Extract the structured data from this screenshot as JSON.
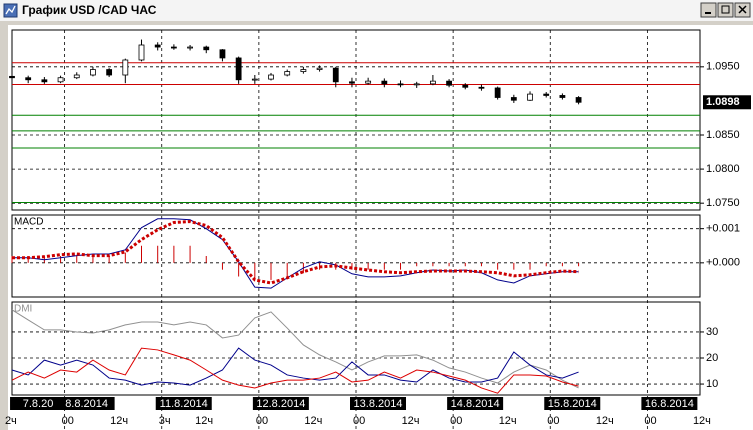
{
  "window": {
    "title": "График USD /CAD  ЧАС"
  },
  "chart_data": [
    {
      "type": "candlestick",
      "x": [
        0,
        4,
        8,
        12,
        16,
        20,
        24,
        28,
        32,
        36,
        40,
        44,
        48,
        52,
        56,
        60,
        64,
        68,
        72,
        76,
        80,
        84,
        88,
        92,
        96,
        100,
        104,
        108,
        112,
        116,
        120,
        124,
        128,
        132,
        136,
        140
      ],
      "open": [
        1.0936,
        1.0934,
        1.0931,
        1.0928,
        1.0934,
        1.0938,
        1.0946,
        1.0938,
        1.096,
        1.0982,
        1.0979,
        1.0978,
        1.0979,
        1.0975,
        1.0963,
        1.0931,
        1.0932,
        1.0938,
        1.0943,
        1.0946,
        1.0948,
        1.0928,
        1.0926,
        1.0929,
        1.0925,
        1.0924,
        1.0925,
        1.0929,
        1.0923,
        1.092,
        1.0919,
        1.0905,
        1.0901,
        1.091,
        1.0908,
        1.0905
      ],
      "high": [
        1.094,
        1.0937,
        1.0935,
        1.0937,
        1.0942,
        1.095,
        1.0948,
        1.0962,
        1.099,
        1.0986,
        1.0983,
        1.0982,
        1.0981,
        1.0976,
        1.0965,
        1.0938,
        1.0941,
        1.0946,
        1.095,
        1.0952,
        1.095,
        1.0934,
        1.0934,
        1.0933,
        1.093,
        1.0928,
        1.0938,
        1.0932,
        1.0926,
        1.0924,
        1.0921,
        1.0909,
        1.0914,
        1.0913,
        1.0911,
        1.0907
      ],
      "low": [
        1.093,
        1.0926,
        1.0925,
        1.0926,
        1.0932,
        1.0936,
        1.0935,
        1.0926,
        1.0958,
        1.0974,
        1.0975,
        1.0974,
        1.097,
        1.0958,
        1.0925,
        1.0925,
        1.093,
        1.0936,
        1.094,
        1.0943,
        1.092,
        1.092,
        1.0924,
        1.092,
        1.092,
        1.0919,
        1.0923,
        1.092,
        1.0917,
        1.0915,
        1.0902,
        1.0897,
        1.09,
        1.0905,
        1.0902,
        1.0895
      ],
      "close": [
        1.0934,
        1.0931,
        1.0928,
        1.0934,
        1.0938,
        1.0946,
        1.0938,
        1.096,
        1.0982,
        1.0979,
        1.0978,
        1.0979,
        1.0975,
        1.0963,
        1.0931,
        1.0932,
        1.0938,
        1.0943,
        1.0946,
        1.0948,
        1.0928,
        1.0926,
        1.0929,
        1.0925,
        1.0924,
        1.0925,
        1.0929,
        1.0923,
        1.092,
        1.0919,
        1.0905,
        1.0901,
        1.091,
        1.0908,
        1.0905,
        1.0898
      ],
      "up_color": "#ffffff",
      "down_color": "#000000",
      "xlim": [
        0,
        170
      ],
      "ylim": [
        1.074,
        1.1004
      ],
      "yticks": [
        {
          "value": 1.075,
          "label": "1.0750"
        },
        {
          "value": 1.08,
          "label": "1.0800"
        },
        {
          "value": 1.085,
          "label": "1.0850"
        },
        {
          "value": 1.095,
          "label": "1.0950"
        }
      ],
      "last_price": {
        "value": 1.0898,
        "label": "1.0898"
      },
      "levels": [
        {
          "value": 1.0956,
          "color": "#cc0000"
        },
        {
          "value": 1.0924,
          "color": "#cc0000"
        },
        {
          "value": 1.0879,
          "color": "#008000"
        },
        {
          "value": 1.0856,
          "color": "#008000"
        },
        {
          "value": 1.0831,
          "color": "#008000"
        },
        {
          "value": 1.0751,
          "color": "#008000"
        }
      ],
      "xgrid": [
        13,
        37,
        61,
        85,
        109,
        133,
        157
      ],
      "date_ticks": [
        {
          "value": 1,
          "label": "7.8.20"
        },
        {
          "value": 13,
          "label": "8.8.2014"
        },
        {
          "value": 37,
          "label": "11.8.2014"
        },
        {
          "value": 61,
          "label": "12.8.2014"
        },
        {
          "value": 85,
          "label": "13.8.2014"
        },
        {
          "value": 109,
          "label": "14.8.2014"
        },
        {
          "value": 133,
          "label": "15.8.2014"
        },
        {
          "value": 157,
          "label": "16.8.2014"
        }
      ],
      "hour_ticks": [
        {
          "value": -1,
          "label": "2ч"
        },
        {
          "value": 13,
          "label": "00"
        },
        {
          "value": 25,
          "label": "12ч"
        },
        {
          "value": 37,
          "label": "3ч"
        },
        {
          "value": 46,
          "label": "12ч"
        },
        {
          "value": 61,
          "label": "00"
        },
        {
          "value": 73,
          "label": "12ч"
        },
        {
          "value": 85,
          "label": "00"
        },
        {
          "value": 97,
          "label": "12ч"
        },
        {
          "value": 109,
          "label": "00"
        },
        {
          "value": 121,
          "label": "12ч"
        },
        {
          "value": 133,
          "label": "00"
        },
        {
          "value": 145,
          "label": "12ч"
        },
        {
          "value": 157,
          "label": "00"
        },
        {
          "value": 169,
          "label": "12ч"
        }
      ]
    },
    {
      "type": "macd",
      "title": "MACD",
      "x": [
        0,
        4,
        8,
        12,
        16,
        20,
        24,
        28,
        32,
        36,
        40,
        44,
        48,
        52,
        56,
        60,
        64,
        68,
        72,
        76,
        80,
        84,
        88,
        92,
        96,
        100,
        104,
        108,
        112,
        116,
        120,
        124,
        128,
        132,
        136,
        140
      ],
      "xlim": [
        0,
        170
      ],
      "ylim": [
        -0.001,
        0.0014
      ],
      "yticks": [
        {
          "value": 0.001,
          "label": "+0.001"
        },
        {
          "value": 0,
          "label": "+0.000"
        }
      ],
      "histogram": {
        "color": "#cc0000",
        "values": [
          0.0002,
          0.0002,
          0.0002,
          0.0002,
          0.0002,
          0.0002,
          0.0002,
          0.0003,
          0.0005,
          0.0005,
          0.0005,
          0.0005,
          0.0002,
          -0.0002,
          -0.0004,
          -0.0005,
          -0.0005,
          -0.0004,
          -0.0003,
          -0.0002,
          -0.0002,
          -0.0002,
          -0.0002,
          -0.0002,
          -0.0002,
          -0.0001,
          -0.0001,
          -0.0001,
          -0.0001,
          -0.0001,
          -0.0002,
          -0.0002,
          -0.0002,
          -0.0001,
          -0.0001,
          -0.0001
        ]
      },
      "series": [
        {
          "color": "#00008b",
          "style": "solid",
          "values": [
            0.00015,
            0.00015,
            9e-05,
            0.00015,
            0.00021,
            0.00026,
            0.00026,
            0.00038,
            0.00103,
            0.00129,
            0.00129,
            0.00126,
            0.001,
            0.00068,
            3e-05,
            -0.00071,
            -0.00074,
            -0.00044,
            -0.00015,
            3e-05,
            -6e-05,
            -0.00032,
            -0.00041,
            -0.00041,
            -0.00038,
            -0.00029,
            -0.00021,
            -0.00024,
            -0.00021,
            -0.00029,
            -0.0005,
            -0.00059,
            -0.00038,
            -0.00032,
            -0.00026,
            -0.00026
          ]
        },
        {
          "color": "#cc0000",
          "style": "dotted",
          "values": [
            0.00015,
            0.00015,
            0.00018,
            0.00024,
            0.00026,
            0.00021,
            0.00021,
            0.00032,
            0.00068,
            0.00097,
            0.00118,
            0.00121,
            0.00109,
            0.00074,
            3e-05,
            -0.0005,
            -0.00059,
            -0.00044,
            -0.00026,
            -0.00012,
            -9e-05,
            -0.00015,
            -0.00021,
            -0.00026,
            -0.00029,
            -0.00026,
            -0.00024,
            -0.00024,
            -0.00024,
            -0.00026,
            -0.00029,
            -0.00038,
            -0.00035,
            -0.00029,
            -0.00024,
            -0.00026
          ]
        }
      ]
    },
    {
      "type": "dmi",
      "title": "DMI",
      "x": [
        0,
        4,
        8,
        12,
        16,
        20,
        24,
        28,
        32,
        36,
        40,
        44,
        48,
        52,
        56,
        60,
        64,
        68,
        72,
        76,
        80,
        84,
        88,
        92,
        96,
        100,
        104,
        108,
        112,
        116,
        120,
        124,
        128,
        132,
        136,
        140
      ],
      "xlim": [
        0,
        170
      ],
      "ylim": [
        5.8,
        41.5
      ],
      "yticks": [
        10,
        20,
        30
      ],
      "series": [
        {
          "color": "#909090",
          "style": "solid",
          "values": [
            38.5,
            34.6,
            30.8,
            30.8,
            30,
            29.6,
            30.8,
            32.7,
            33.8,
            33.8,
            32.7,
            33.8,
            32.7,
            27.7,
            28.8,
            35.4,
            37.7,
            31.5,
            25,
            21.2,
            18.5,
            15.4,
            18.5,
            20.8,
            20.8,
            21.2,
            19.2,
            16.2,
            14.6,
            12.3,
            10.4,
            14.6,
            17.3,
            15.4,
            11.5,
            8.5
          ]
        },
        {
          "color": "#00008b",
          "style": "solid",
          "values": [
            15.4,
            13.5,
            19.2,
            17.3,
            19.2,
            17.3,
            12.3,
            11.5,
            9.6,
            10.8,
            10.4,
            9.6,
            12.3,
            15.4,
            23.8,
            19.2,
            17.3,
            13.5,
            12.3,
            11.5,
            12.3,
            18.5,
            13.5,
            13.5,
            11.5,
            10.8,
            15.4,
            12.3,
            10.8,
            10.8,
            12.3,
            22.3,
            17.3,
            13.5,
            12.3,
            14.6
          ]
        },
        {
          "color": "#dd0000",
          "style": "solid",
          "values": [
            11.5,
            14.6,
            12.3,
            15.4,
            14.6,
            19.2,
            15.4,
            13.5,
            23.8,
            23.1,
            21.2,
            19.2,
            15.4,
            11.5,
            9.6,
            8.5,
            10.4,
            11.5,
            11.5,
            12.3,
            14.6,
            10.8,
            11.5,
            14.6,
            12.3,
            15.4,
            14.6,
            13.1,
            11.5,
            8.5,
            6.5,
            13.5,
            13.5,
            13.1,
            10.8,
            9.2
          ]
        }
      ]
    }
  ]
}
